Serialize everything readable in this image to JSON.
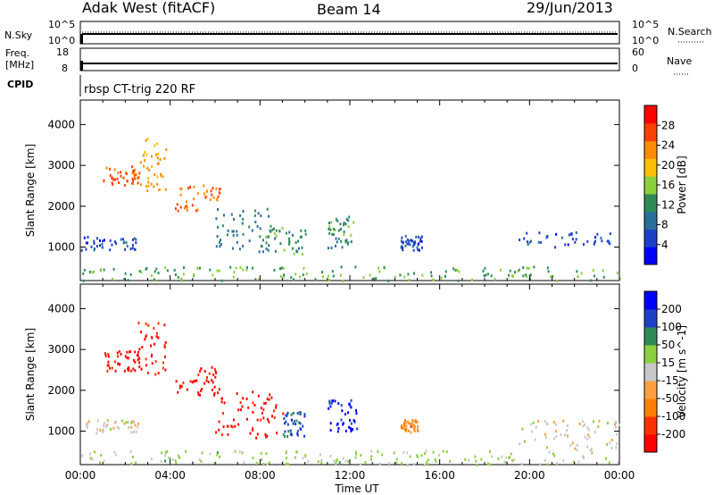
{
  "header": {
    "station": "Adak West (fitACF)",
    "beam": "Beam 14",
    "date": "29/Jun/2013"
  },
  "status_panels": {
    "nsky_label": "N.Sky",
    "nsky_ticks": [
      "10^5",
      "10^0"
    ],
    "nsearch_label": "N.Search",
    "nsearch_ticks": [
      "10^5",
      "10^0"
    ],
    "freq_label_1": "Freq.",
    "freq_label_2": "[MHz]",
    "freq_ticks": [
      "18",
      "8"
    ],
    "nave_label": "Nave",
    "nave_ticks": [
      "60",
      "0"
    ],
    "cpid_label": "CPID",
    "cpid_text": "rbsp CT-trig 220 RF"
  },
  "chart_data": [
    {
      "type": "heatmap",
      "name": "power-panel",
      "ylabel": "Slant Range [km]",
      "yticks": [
        "4000",
        "3000",
        "2000",
        "1000"
      ],
      "ylim": [
        180,
        4600
      ],
      "xlim": [
        0,
        24
      ],
      "colorbar": {
        "label": "Power [dB]",
        "ticks": [
          "28",
          "24",
          "20",
          "16",
          "12",
          "8",
          "4"
        ],
        "colors": [
          "#0000ff",
          "#1e40c8",
          "#2a6e9a",
          "#2e8b57",
          "#8ccf3c",
          "#ffc000",
          "#ff8c00",
          "#ff4000",
          "#ff0000"
        ],
        "range": [
          0,
          32
        ]
      },
      "clusters": [
        {
          "t": [
            1.0,
            2.6
          ],
          "r": [
            2500,
            3000
          ],
          "value": 26
        },
        {
          "t": [
            2.5,
            3.8
          ],
          "r": [
            2400,
            3700
          ],
          "value": 22
        },
        {
          "t": [
            4.2,
            6.2
          ],
          "r": [
            1900,
            2600
          ],
          "value": 24
        },
        {
          "t": [
            6.0,
            8.5
          ],
          "r": [
            900,
            2000
          ],
          "value": 10
        },
        {
          "t": [
            8.0,
            10.0
          ],
          "r": [
            850,
            1500
          ],
          "value": 12
        },
        {
          "t": [
            0.0,
            2.6
          ],
          "r": [
            950,
            1300
          ],
          "value": 6
        },
        {
          "t": [
            11.0,
            12.2
          ],
          "r": [
            1000,
            1800
          ],
          "value": 12
        },
        {
          "t": [
            14.2,
            15.2
          ],
          "r": [
            950,
            1300
          ],
          "value": 6
        },
        {
          "t": [
            19.5,
            23.8
          ],
          "r": [
            1000,
            1400
          ],
          "value": 6
        },
        {
          "t": [
            0.0,
            24.0
          ],
          "r": [
            200,
            550
          ],
          "value": 14
        }
      ]
    },
    {
      "type": "heatmap",
      "name": "velocity-panel",
      "ylabel": "Slant Range [km]",
      "yticks": [
        "4000",
        "3000",
        "2000",
        "1000"
      ],
      "ylim": [
        180,
        4600
      ],
      "xlim": [
        0,
        24
      ],
      "colorbar": {
        "label": "Velocity [m s^-1]",
        "ticks": [
          "200",
          "100",
          "50",
          "15",
          "-15",
          "-50",
          "-100",
          "-200"
        ],
        "colors": [
          "#ff0000",
          "#ff3000",
          "#ff8000",
          "#ffa040",
          "#c8c8c8",
          "#8cd040",
          "#2e8b57",
          "#1e40c8",
          "#0000ff"
        ],
        "range": [
          -250,
          250
        ]
      },
      "clusters": [
        {
          "t": [
            1.0,
            2.6
          ],
          "r": [
            2500,
            3000
          ],
          "value": -220
        },
        {
          "t": [
            2.5,
            3.8
          ],
          "r": [
            2400,
            3700
          ],
          "value": -200
        },
        {
          "t": [
            4.2,
            6.2
          ],
          "r": [
            1900,
            2600
          ],
          "value": -220
        },
        {
          "t": [
            6.0,
            9.0
          ],
          "r": [
            850,
            2000
          ],
          "value": -220
        },
        {
          "t": [
            9.0,
            10.0
          ],
          "r": [
            900,
            1500
          ],
          "value": 150
        },
        {
          "t": [
            11.0,
            12.3
          ],
          "r": [
            1000,
            1800
          ],
          "value": 220
        },
        {
          "t": [
            14.2,
            15.0
          ],
          "r": [
            1000,
            1300
          ],
          "value": -100
        },
        {
          "t": [
            0.0,
            2.6
          ],
          "r": [
            950,
            1300
          ],
          "value": 0
        },
        {
          "t": [
            19.5,
            24.0
          ],
          "r": [
            550,
            1300
          ],
          "value": 0
        },
        {
          "t": [
            0.0,
            24.0
          ],
          "r": [
            200,
            550
          ],
          "value": 40
        }
      ]
    }
  ],
  "xaxis": {
    "ticks": [
      "00:00",
      "04:00",
      "08:00",
      "12:00",
      "16:00",
      "20:00",
      "00:00"
    ],
    "label": "Time UT"
  }
}
